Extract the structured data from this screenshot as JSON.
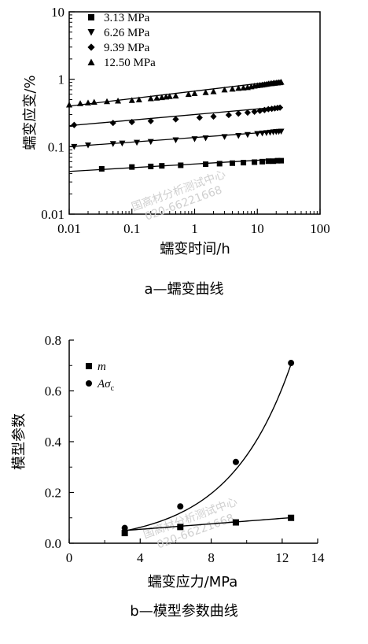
{
  "chart_data": [
    {
      "type": "scatter",
      "xscale": "log",
      "yscale": "log",
      "xlim": [
        0.01,
        100
      ],
      "ylim": [
        0.01,
        10
      ],
      "xlabel": "蠕变时间/h",
      "ylabel": "蠕变应变/%",
      "x_ticks": [
        "0.01",
        "0.1",
        "1",
        "10",
        "100"
      ],
      "y_ticks": [
        "0.01",
        "0.1",
        "1",
        "10"
      ],
      "caption": "a—蠕变曲线",
      "legend_position": "top-left",
      "series": [
        {
          "name": "3.13 MPa",
          "marker": "square",
          "x": [
            0.033,
            0.1,
            0.2,
            0.3,
            0.6,
            1.5,
            2.5,
            4.0,
            6.0,
            9.0,
            12.0,
            15.0,
            18.0,
            21.0,
            24.0
          ],
          "y": [
            0.047,
            0.05,
            0.051,
            0.052,
            0.053,
            0.055,
            0.056,
            0.057,
            0.058,
            0.059,
            0.06,
            0.061,
            0.061,
            0.062,
            0.062
          ],
          "fit": [
            [
              0.01,
              0.043
            ],
            [
              24,
              0.066
            ]
          ]
        },
        {
          "name": "6.26 MPa",
          "marker": "triangle-down",
          "x": [
            0.012,
            0.02,
            0.05,
            0.07,
            0.12,
            0.2,
            0.5,
            1.0,
            1.5,
            3.0,
            5.0,
            7.0,
            10.0,
            12.0,
            14.0,
            16.0,
            18.0,
            20.0,
            22.0,
            24.0
          ],
          "y": [
            0.1,
            0.105,
            0.11,
            0.112,
            0.115,
            0.118,
            0.125,
            0.13,
            0.134,
            0.14,
            0.145,
            0.15,
            0.155,
            0.158,
            0.16,
            0.162,
            0.164,
            0.166,
            0.167,
            0.168
          ],
          "fit": [
            [
              0.01,
              0.1
            ],
            [
              24,
              0.17
            ]
          ]
        },
        {
          "name": "9.39 MPa",
          "marker": "diamond",
          "x": [
            0.012,
            0.05,
            0.1,
            0.2,
            0.5,
            1.2,
            2.0,
            3.5,
            5.0,
            7.0,
            9.0,
            11.0,
            13.0,
            15.0,
            17.0,
            19.0,
            21.0,
            23.0
          ],
          "y": [
            0.21,
            0.225,
            0.232,
            0.24,
            0.255,
            0.27,
            0.28,
            0.295,
            0.31,
            0.32,
            0.33,
            0.34,
            0.35,
            0.36,
            0.365,
            0.37,
            0.375,
            0.38
          ],
          "fit": [
            [
              0.01,
              0.205
            ],
            [
              24,
              0.39
            ]
          ]
        },
        {
          "name": "12.50 MPa",
          "marker": "triangle-up",
          "x": [
            0.01,
            0.015,
            0.02,
            0.025,
            0.04,
            0.06,
            0.1,
            0.13,
            0.2,
            0.25,
            0.3,
            0.35,
            0.4,
            0.5,
            0.8,
            1.0,
            1.5,
            2.0,
            3.0,
            4.0,
            5.0,
            6.0,
            7.0,
            8.0,
            9.0,
            10.0,
            11.0,
            12.0,
            13.0,
            14.0,
            15.0,
            16.0,
            17.0,
            18.0,
            19.0,
            20.0,
            21.0,
            22.0,
            23.0,
            24.0
          ],
          "y": [
            0.42,
            0.44,
            0.45,
            0.46,
            0.47,
            0.48,
            0.49,
            0.5,
            0.52,
            0.53,
            0.54,
            0.55,
            0.56,
            0.57,
            0.6,
            0.62,
            0.64,
            0.66,
            0.7,
            0.72,
            0.74,
            0.75,
            0.76,
            0.78,
            0.8,
            0.81,
            0.82,
            0.83,
            0.84,
            0.85,
            0.86,
            0.87,
            0.87,
            0.88,
            0.88,
            0.89,
            0.89,
            0.9,
            0.9,
            0.91
          ],
          "fit": [
            [
              0.01,
              0.4
            ],
            [
              24,
              0.95
            ]
          ]
        }
      ]
    },
    {
      "type": "scatter",
      "xlim": [
        0,
        14
      ],
      "ylim": [
        0,
        0.8
      ],
      "xlabel": "蠕变应力/MPa",
      "ylabel": "模型参数",
      "x_ticks": [
        "0",
        "4",
        "8",
        "12",
        "14"
      ],
      "y_ticks": [
        "0.0",
        "0.2",
        "0.4",
        "0.6",
        "0.8"
      ],
      "caption": "b—模型参数曲线",
      "legend_position": "top-left",
      "series": [
        {
          "name": "m",
          "marker": "square",
          "x": [
            3.13,
            6.26,
            9.39,
            12.5
          ],
          "y": [
            0.04,
            0.064,
            0.082,
            0.1
          ],
          "fit_curve": {
            "kind": "linear",
            "from": 3.13,
            "to": 12.5,
            "a": 0.0332,
            "b": 0.0054
          }
        },
        {
          "name": "Aσc",
          "marker": "circle",
          "name_main": "Aσ",
          "name_sub": "c",
          "x": [
            3.13,
            6.26,
            9.39,
            12.5
          ],
          "y": [
            0.06,
            0.145,
            0.32,
            0.71
          ],
          "fit_curve": {
            "kind": "exponential",
            "from": 3.13,
            "to": 12.5,
            "a": 0.02,
            "b": 0.285
          }
        }
      ]
    }
  ],
  "watermark": {
    "line1": "国高材分析测试中心",
    "line2": "020-66221668"
  }
}
